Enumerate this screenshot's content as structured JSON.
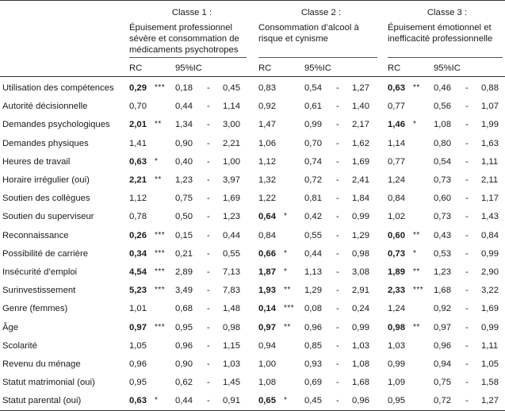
{
  "columns": {
    "groups": [
      {
        "title": "Classe 1 :",
        "subtitle_lines": [
          "Épuisement professionnel",
          "sévère et consommation de",
          "médicaments psychotropes"
        ]
      },
      {
        "title": "Classe 2 :",
        "subtitle_lines": [
          "Consommation d’alcool à",
          "risque et cynisme"
        ]
      },
      {
        "title": "Classe 3 :",
        "subtitle_lines": [
          "Épuisement émotionnel et",
          "inefficacité professionnelle"
        ]
      }
    ],
    "rc_label": "RC",
    "ic_label": "95%IC",
    "dash": "-"
  },
  "rows": [
    {
      "label": "Utilisation des compétences",
      "c": [
        {
          "rc": "0,29",
          "bold": true,
          "sig": "***",
          "lo": "0,18",
          "hi": "0,45"
        },
        {
          "rc": "0,83",
          "bold": false,
          "sig": "",
          "lo": "0,54",
          "hi": "1,27"
        },
        {
          "rc": "0,63",
          "bold": true,
          "sig": "**",
          "lo": "0,46",
          "hi": "0,88"
        }
      ]
    },
    {
      "label": "Autorité décisionnelle",
      "c": [
        {
          "rc": "0,70",
          "bold": false,
          "sig": "",
          "lo": "0,44",
          "hi": "1,14"
        },
        {
          "rc": "0,92",
          "bold": false,
          "sig": "",
          "lo": "0,61",
          "hi": "1,40"
        },
        {
          "rc": "0,77",
          "bold": false,
          "sig": "",
          "lo": "0,56",
          "hi": "1,07"
        }
      ]
    },
    {
      "label": "Demandes psychologiques",
      "c": [
        {
          "rc": "2,01",
          "bold": true,
          "sig": "**",
          "lo": "1,34",
          "hi": "3,00"
        },
        {
          "rc": "1,47",
          "bold": false,
          "sig": "",
          "lo": "0,99",
          "hi": "2,17"
        },
        {
          "rc": "1,46",
          "bold": true,
          "sig": "*",
          "lo": "1,08",
          "hi": "1,99"
        }
      ]
    },
    {
      "label": "Demandes physiques",
      "c": [
        {
          "rc": "1,41",
          "bold": false,
          "sig": "",
          "lo": "0,90",
          "hi": "2,21"
        },
        {
          "rc": "1,06",
          "bold": false,
          "sig": "",
          "lo": "0,70",
          "hi": "1,62"
        },
        {
          "rc": "1,14",
          "bold": false,
          "sig": "",
          "lo": "0,80",
          "hi": "1,63"
        }
      ]
    },
    {
      "label": "Heures de travail",
      "c": [
        {
          "rc": "0,63",
          "bold": true,
          "sig": "*",
          "lo": "0,40",
          "hi": "1,00"
        },
        {
          "rc": "1,12",
          "bold": false,
          "sig": "",
          "lo": "0,74",
          "hi": "1,69"
        },
        {
          "rc": "0,77",
          "bold": false,
          "sig": "",
          "lo": "0,54",
          "hi": "1,11"
        }
      ]
    },
    {
      "label": "Horaire irrégulier (oui)",
      "c": [
        {
          "rc": "2,21",
          "bold": true,
          "sig": "**",
          "lo": "1,23",
          "hi": "3,97"
        },
        {
          "rc": "1,32",
          "bold": false,
          "sig": "",
          "lo": "0,72",
          "hi": "2,41"
        },
        {
          "rc": "1,24",
          "bold": false,
          "sig": "",
          "lo": "0,73",
          "hi": "2,11"
        }
      ]
    },
    {
      "label": "Soutien des collègues",
      "c": [
        {
          "rc": "1,12",
          "bold": false,
          "sig": "",
          "lo": "0,75",
          "hi": "1,69"
        },
        {
          "rc": "1,22",
          "bold": false,
          "sig": "",
          "lo": "0,81",
          "hi": "1,84"
        },
        {
          "rc": "0,84",
          "bold": false,
          "sig": "",
          "lo": "0,60",
          "hi": "1,17"
        }
      ]
    },
    {
      "label": "Soutien du superviseur",
      "c": [
        {
          "rc": "0,78",
          "bold": false,
          "sig": "",
          "lo": "0,50",
          "hi": "1,23"
        },
        {
          "rc": "0,64",
          "bold": true,
          "sig": "*",
          "lo": "0,42",
          "hi": "0,99"
        },
        {
          "rc": "1,02",
          "bold": false,
          "sig": "",
          "lo": "0,73",
          "hi": "1,43"
        }
      ]
    },
    {
      "label": "Reconnaissance",
      "c": [
        {
          "rc": "0,26",
          "bold": true,
          "sig": "***",
          "lo": "0,15",
          "hi": "0,44"
        },
        {
          "rc": "0,84",
          "bold": false,
          "sig": "",
          "lo": "0,55",
          "hi": "1,29"
        },
        {
          "rc": "0,60",
          "bold": true,
          "sig": "**",
          "lo": "0,43",
          "hi": "0,84"
        }
      ]
    },
    {
      "label": "Possibilité de carrière",
      "c": [
        {
          "rc": "0,34",
          "bold": true,
          "sig": "***",
          "lo": "0,21",
          "hi": "0,55"
        },
        {
          "rc": "0,66",
          "bold": true,
          "sig": "*",
          "lo": "0,44",
          "hi": "0,98"
        },
        {
          "rc": "0,73",
          "bold": true,
          "sig": "*",
          "lo": "0,53",
          "hi": "0,99"
        }
      ]
    },
    {
      "label": "Insécurité d’emploi",
      "c": [
        {
          "rc": "4,54",
          "bold": true,
          "sig": "***",
          "lo": "2,89",
          "hi": "7,13"
        },
        {
          "rc": "1,87",
          "bold": true,
          "sig": "*",
          "lo": "1,13",
          "hi": "3,08"
        },
        {
          "rc": "1,89",
          "bold": true,
          "sig": "**",
          "lo": "1,23",
          "hi": "2,90"
        }
      ]
    },
    {
      "label": "Surinvestissement",
      "c": [
        {
          "rc": "5,23",
          "bold": true,
          "sig": "***",
          "lo": "3,49",
          "hi": "7,83"
        },
        {
          "rc": "1,93",
          "bold": true,
          "sig": "**",
          "lo": "1,29",
          "hi": "2,91"
        },
        {
          "rc": "2,33",
          "bold": true,
          "sig": "***",
          "lo": "1,68",
          "hi": "3,22"
        }
      ]
    },
    {
      "label": "Genre (femmes)",
      "c": [
        {
          "rc": "1,01",
          "bold": false,
          "sig": "",
          "lo": "0,68",
          "hi": "1,48"
        },
        {
          "rc": "0,14",
          "bold": true,
          "sig": "***",
          "lo": "0,08",
          "hi": "0,24"
        },
        {
          "rc": "1,24",
          "bold": false,
          "sig": "",
          "lo": "0,92",
          "hi": "1,69"
        }
      ]
    },
    {
      "label": "Âge",
      "c": [
        {
          "rc": "0,97",
          "bold": true,
          "sig": "***",
          "lo": "0,95",
          "hi": "0,98"
        },
        {
          "rc": "0,97",
          "bold": true,
          "sig": "**",
          "lo": "0,96",
          "hi": "0,99"
        },
        {
          "rc": "0,98",
          "bold": true,
          "sig": "**",
          "lo": "0,97",
          "hi": "0,99"
        }
      ]
    },
    {
      "label": "Scolarité",
      "c": [
        {
          "rc": "1,05",
          "bold": false,
          "sig": "",
          "lo": "0,96",
          "hi": "1,15"
        },
        {
          "rc": "0,94",
          "bold": false,
          "sig": "",
          "lo": "0,85",
          "hi": "1,03"
        },
        {
          "rc": "1,03",
          "bold": false,
          "sig": "",
          "lo": "0,96",
          "hi": "1,11"
        }
      ]
    },
    {
      "label": "Revenu du ménage",
      "c": [
        {
          "rc": "0,96",
          "bold": false,
          "sig": "",
          "lo": "0,90",
          "hi": "1,03"
        },
        {
          "rc": "1,00",
          "bold": false,
          "sig": "",
          "lo": "0,93",
          "hi": "1,08"
        },
        {
          "rc": "0,99",
          "bold": false,
          "sig": "",
          "lo": "0,94",
          "hi": "1,05"
        }
      ]
    },
    {
      "label": "Statut matrimonial (oui)",
      "c": [
        {
          "rc": "0,95",
          "bold": false,
          "sig": "",
          "lo": "0,62",
          "hi": "1,45"
        },
        {
          "rc": "1,08",
          "bold": false,
          "sig": "",
          "lo": "0,69",
          "hi": "1,68"
        },
        {
          "rc": "1,09",
          "bold": false,
          "sig": "",
          "lo": "0,75",
          "hi": "1,58"
        }
      ]
    },
    {
      "label": "Statut parental (oui)",
      "c": [
        {
          "rc": "0,63",
          "bold": true,
          "sig": "*",
          "lo": "0,44",
          "hi": "0,91"
        },
        {
          "rc": "0,65",
          "bold": true,
          "sig": "*",
          "lo": "0,45",
          "hi": "0,96"
        },
        {
          "rc": "0,95",
          "bold": false,
          "sig": "",
          "lo": "0,72",
          "hi": "1,27"
        }
      ]
    }
  ]
}
